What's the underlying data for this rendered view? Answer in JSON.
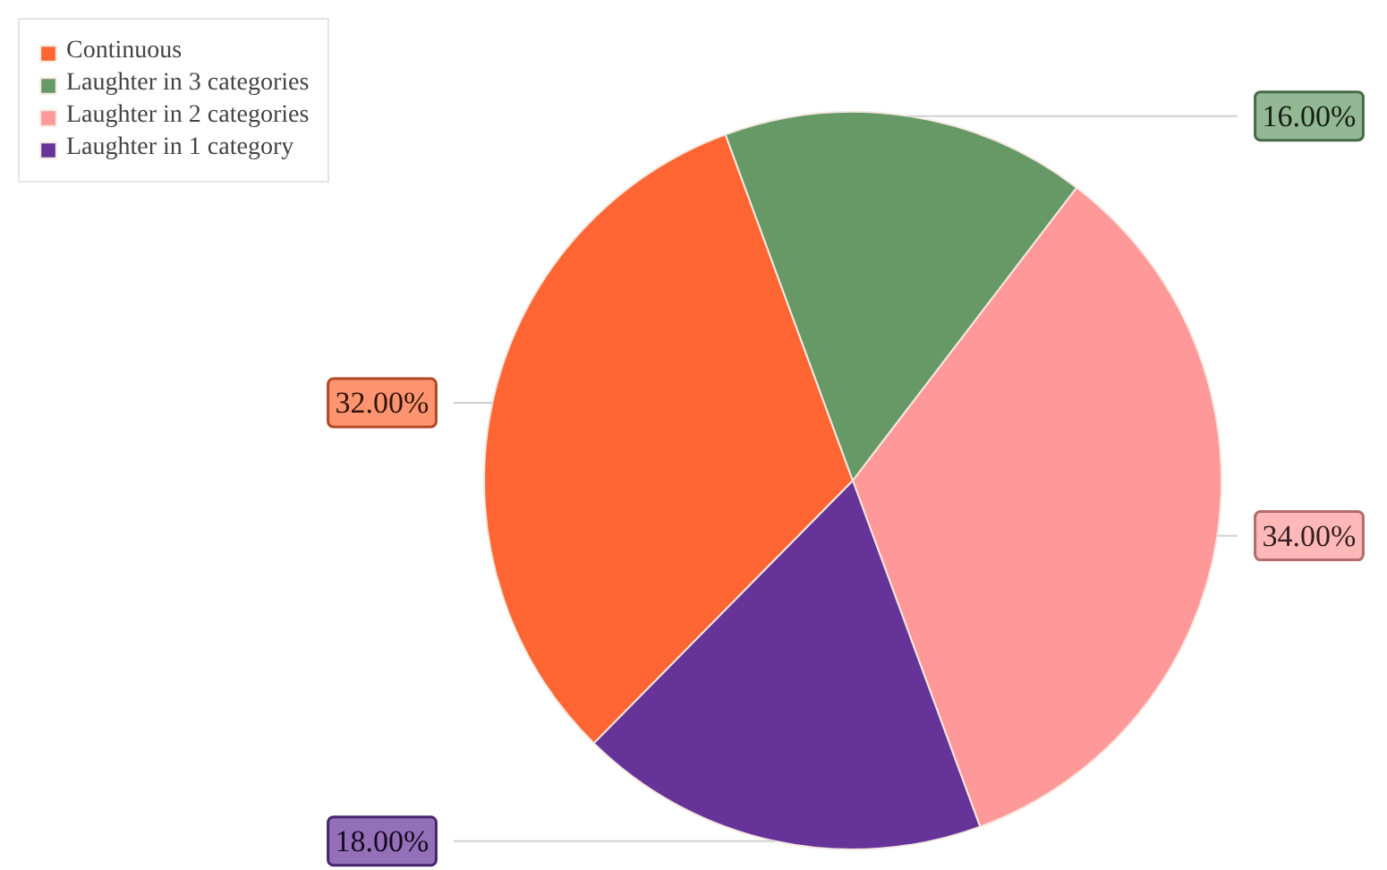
{
  "chart_data": {
    "type": "pie",
    "categories": [
      "Continuous",
      "Laughter in 3 categories",
      "Laughter in 2 categories",
      "Laughter in 1 category"
    ],
    "values": [
      32,
      16,
      34,
      18
    ],
    "colors": [
      "#ff6633",
      "#669966",
      "#ff9999",
      "#663399"
    ],
    "value_labels": [
      "32.00%",
      "16.00%",
      "34.00%",
      "18.00%"
    ],
    "legend": "top left"
  }
}
